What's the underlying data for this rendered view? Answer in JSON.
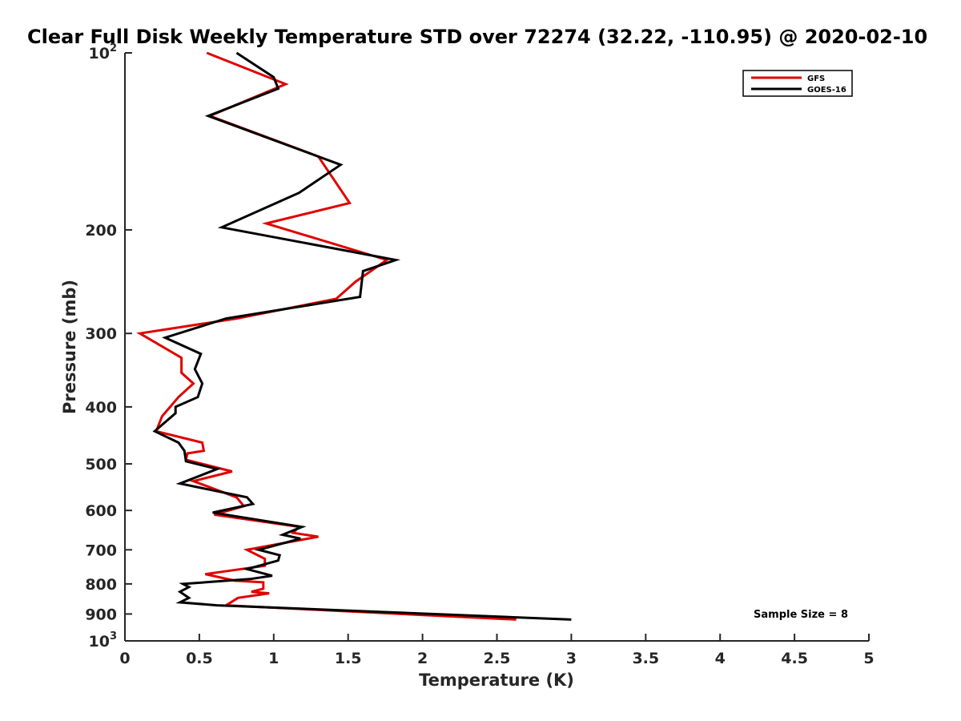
{
  "chart_data": {
    "type": "line",
    "title": "Clear Full Disk Weekly Temperature STD over 72274 (32.22, -110.95) @ 2020-02-10",
    "xlabel": "Temperature (K)",
    "ylabel": "Pressure (mb)",
    "xlim": [
      0,
      5
    ],
    "ylim": [
      100,
      1000
    ],
    "y_scale": "log",
    "y_reversed": true,
    "grid": false,
    "legend_position": "top-right",
    "x_ticks": [
      "0",
      "0.5",
      "1",
      "1.5",
      "2",
      "2.5",
      "3",
      "3.5",
      "4",
      "4.5",
      "5"
    ],
    "y_ticks": [
      {
        "value": 100,
        "label": "10",
        "sup": "2"
      },
      {
        "value": 200,
        "label": "200"
      },
      {
        "value": 300,
        "label": "300"
      },
      {
        "value": 400,
        "label": "400"
      },
      {
        "value": 500,
        "label": "500"
      },
      {
        "value": 600,
        "label": "600"
      },
      {
        "value": 700,
        "label": "700"
      },
      {
        "value": 800,
        "label": "800"
      },
      {
        "value": 900,
        "label": "900"
      },
      {
        "value": 1000,
        "label": "10",
        "sup": "3"
      }
    ],
    "annotation": "Sample Size = 8",
    "series": [
      {
        "name": "GFS",
        "color": "#e00000",
        "points": [
          [
            0.55,
            100
          ],
          [
            1.08,
            113
          ],
          [
            0.57,
            128
          ],
          [
            1.3,
            150
          ],
          [
            1.51,
            180
          ],
          [
            0.95,
            195
          ],
          [
            1.76,
            225
          ],
          [
            1.55,
            245
          ],
          [
            1.42,
            262
          ],
          [
            0.75,
            283
          ],
          [
            0.1,
            300
          ],
          [
            0.38,
            330
          ],
          [
            0.38,
            350
          ],
          [
            0.46,
            365
          ],
          [
            0.36,
            385
          ],
          [
            0.25,
            415
          ],
          [
            0.21,
            440
          ],
          [
            0.52,
            460
          ],
          [
            0.53,
            475
          ],
          [
            0.42,
            480
          ],
          [
            0.41,
            492
          ],
          [
            0.72,
            515
          ],
          [
            0.46,
            535
          ],
          [
            0.75,
            570
          ],
          [
            0.8,
            590
          ],
          [
            0.6,
            610
          ],
          [
            1.17,
            640
          ],
          [
            1.13,
            655
          ],
          [
            1.3,
            665
          ],
          [
            0.82,
            700
          ],
          [
            0.94,
            725
          ],
          [
            0.94,
            745
          ],
          [
            0.54,
            770
          ],
          [
            0.74,
            790
          ],
          [
            0.93,
            795
          ],
          [
            0.93,
            815
          ],
          [
            0.85,
            825
          ],
          [
            0.97,
            830
          ],
          [
            0.76,
            845
          ],
          [
            0.68,
            870
          ],
          [
            2.63,
            920
          ]
        ]
      },
      {
        "name": "GOES-16",
        "color": "#000000",
        "points": [
          [
            0.75,
            100
          ],
          [
            1.0,
            110
          ],
          [
            1.03,
            115
          ],
          [
            0.56,
            128
          ],
          [
            1.45,
            155
          ],
          [
            1.17,
            173
          ],
          [
            0.65,
            198
          ],
          [
            1.82,
            225
          ],
          [
            1.6,
            235
          ],
          [
            1.58,
            260
          ],
          [
            0.68,
            283
          ],
          [
            0.27,
            305
          ],
          [
            0.51,
            325
          ],
          [
            0.47,
            345
          ],
          [
            0.52,
            365
          ],
          [
            0.49,
            385
          ],
          [
            0.34,
            400
          ],
          [
            0.34,
            410
          ],
          [
            0.2,
            440
          ],
          [
            0.36,
            460
          ],
          [
            0.4,
            475
          ],
          [
            0.41,
            495
          ],
          [
            0.62,
            510
          ],
          [
            0.37,
            540
          ],
          [
            0.82,
            570
          ],
          [
            0.86,
            585
          ],
          [
            0.59,
            605
          ],
          [
            1.19,
            640
          ],
          [
            1.06,
            660
          ],
          [
            1.18,
            670
          ],
          [
            0.9,
            700
          ],
          [
            1.04,
            715
          ],
          [
            1.03,
            730
          ],
          [
            0.82,
            755
          ],
          [
            0.99,
            775
          ],
          [
            0.84,
            785
          ],
          [
            0.39,
            800
          ],
          [
            0.43,
            810
          ],
          [
            0.37,
            825
          ],
          [
            0.43,
            845
          ],
          [
            0.37,
            860
          ],
          [
            0.62,
            870
          ],
          [
            3.0,
            920
          ]
        ]
      }
    ]
  }
}
